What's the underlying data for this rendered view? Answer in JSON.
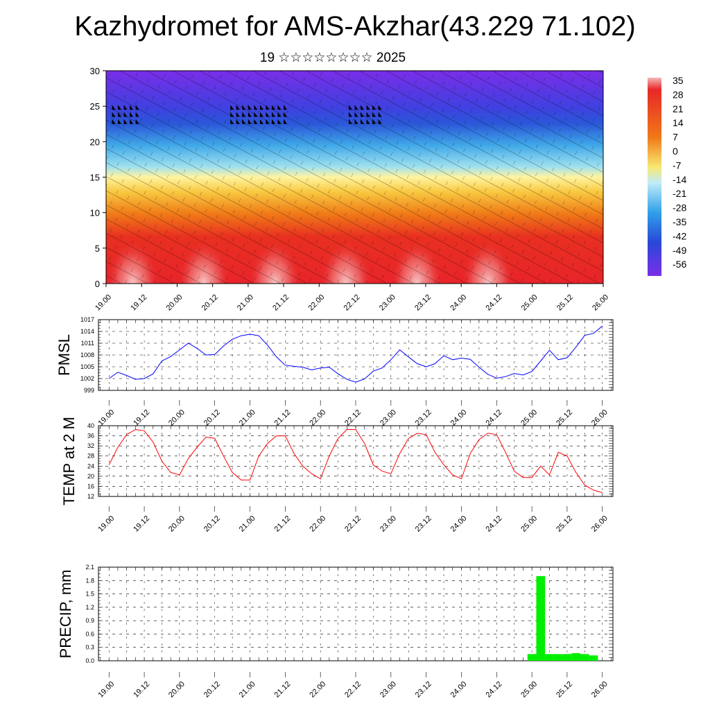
{
  "title": "Kazhydromet for AMS-Akzhar(43.229 71.102)",
  "subtitle": "19 ☆☆☆☆☆☆☆☆ 2025",
  "time_labels": [
    "19.00",
    "19.12",
    "20.00",
    "20.12",
    "21.00",
    "21.12",
    "22.00",
    "22.12",
    "23.00",
    "23.12",
    "24.00",
    "24.12",
    "25.00",
    "25.12",
    "26.00"
  ],
  "colorbar_labels": [
    "35",
    "28",
    "21",
    "14",
    "7",
    "0",
    "-7",
    "-14",
    "-21",
    "-28",
    "-35",
    "-42",
    "-49",
    "-56"
  ],
  "colors": {
    "pmsl_line": "#0000ff",
    "temp_line": "#ff0000",
    "precip_bar": "#00ee00",
    "grid": "#000000"
  },
  "chart_data": [
    {
      "type": "heatmap",
      "title": "Kazhydromet for AMS-Akzhar(43.229 71.102)",
      "subtitle": "19 ☆☆☆☆☆☆☆☆ 2025",
      "ylabel": "",
      "ylim": [
        0,
        30
      ],
      "y_ticks": [
        "0",
        "5",
        "10",
        "15",
        "20",
        "25",
        "30"
      ],
      "x_ticks": [
        "19.00",
        "19.12",
        "20.00",
        "20.12",
        "21.00",
        "21.12",
        "22.00",
        "22.12",
        "23.00",
        "23.12",
        "24.00",
        "24.12",
        "25.00",
        "25.12",
        "26.00"
      ],
      "colorbar": [
        "35",
        "28",
        "21",
        "14",
        "7",
        "0",
        "-7",
        "-14",
        "-21",
        "-28",
        "-35",
        "-42",
        "-49",
        "-56"
      ],
      "levels": [
        0,
        5,
        10,
        15,
        20,
        25,
        30
      ],
      "temperature_by_level": [
        33,
        25,
        15,
        -7,
        -24,
        -45,
        -56
      ]
    },
    {
      "type": "line",
      "ylabel": "PMSL",
      "ylim": [
        999,
        1017
      ],
      "y_ticks": [
        "1017",
        "1014",
        "1011",
        "1008",
        "1005",
        "1002",
        "999"
      ],
      "x_ticks": [
        "19.00",
        "19.12",
        "20.00",
        "20.12",
        "21.00",
        "21.12",
        "22.00",
        "22.12",
        "23.00",
        "23.12",
        "24.00",
        "24.12",
        "25.00",
        "25.12",
        "26.00"
      ],
      "x": [
        0,
        3,
        6,
        9,
        12,
        15,
        18,
        21,
        24,
        27,
        30,
        33,
        36,
        39,
        42,
        45,
        48,
        51,
        54,
        57,
        60,
        63,
        66,
        69,
        72,
        75,
        78,
        81,
        84,
        87,
        90,
        93,
        96,
        99,
        102,
        105,
        108,
        111,
        114,
        117,
        120,
        123,
        126,
        129,
        132,
        135,
        138,
        141,
        144,
        147,
        150,
        153,
        156,
        159,
        162,
        165,
        168
      ],
      "values": [
        1002,
        1003.6,
        1002.8,
        1001.8,
        1002,
        1003.2,
        1006.5,
        1007.6,
        1009.3,
        1011,
        1009.7,
        1008,
        1008.1,
        1010.3,
        1012,
        1012.9,
        1013.3,
        1012.9,
        1010.5,
        1007.5,
        1005.4,
        1005.1,
        1004.9,
        1004.2,
        1004.7,
        1004.9,
        1003.2,
        1001.8,
        1001.1,
        1001.9,
        1003.9,
        1004.7,
        1006.8,
        1009.3,
        1007.5,
        1005.8,
        1005,
        1005.8,
        1007.8,
        1006.8,
        1007.2,
        1006.9,
        1004.9,
        1003.1,
        1002.1,
        1002.5,
        1003.3,
        1002.9,
        1003.8,
        1006.5,
        1009.2,
        1006.8,
        1007.3,
        1010,
        1013,
        1013.5,
        1015.4
      ]
    },
    {
      "type": "line",
      "ylabel": "TEMP at 2 M",
      "ylim": [
        12,
        40
      ],
      "y_ticks": [
        "40",
        "36",
        "32",
        "28",
        "24",
        "20",
        "16",
        "12"
      ],
      "x_ticks": [
        "19.00",
        "19.12",
        "20.00",
        "20.12",
        "21.00",
        "21.12",
        "22.00",
        "22.12",
        "23.00",
        "23.12",
        "24.00",
        "24.12",
        "25.00",
        "25.12",
        "26.00"
      ],
      "x": [
        0,
        3,
        6,
        9,
        12,
        15,
        18,
        21,
        24,
        27,
        30,
        33,
        36,
        39,
        42,
        45,
        48,
        51,
        54,
        57,
        60,
        63,
        66,
        69,
        72,
        75,
        78,
        81,
        84,
        87,
        90,
        93,
        96,
        99,
        102,
        105,
        108,
        111,
        114,
        117,
        120,
        123,
        126,
        129,
        132,
        135,
        138,
        141,
        144,
        147,
        150,
        153,
        156,
        159,
        162,
        165,
        168
      ],
      "values": [
        24.5,
        31.5,
        36.5,
        38.5,
        38,
        33.5,
        26,
        21.5,
        20.5,
        27,
        31.5,
        35.5,
        35,
        28,
        21.5,
        18.5,
        18.5,
        28,
        33,
        36,
        36,
        29,
        24,
        21,
        19,
        28,
        35,
        38.5,
        38.5,
        33,
        24.5,
        22,
        21,
        29,
        35,
        37,
        36.5,
        29.5,
        24.5,
        20.5,
        19,
        29,
        34.5,
        37,
        36.5,
        29.5,
        22,
        19.5,
        19.5,
        24,
        20.5,
        29.5,
        28,
        21.5,
        16.5,
        14.5,
        13.5
      ]
    },
    {
      "type": "bar",
      "ylabel": "PRECIP, mm",
      "ylim": [
        0,
        2.1
      ],
      "y_ticks": [
        "2.1",
        "1.8",
        "1.5",
        "1.2",
        "0.9",
        "0.6",
        "0.3",
        "0.0"
      ],
      "x_ticks": [
        "19.00",
        "19.12",
        "20.00",
        "20.12",
        "21.00",
        "21.12",
        "22.00",
        "22.12",
        "23.00",
        "23.12",
        "24.00",
        "24.12",
        "25.00",
        "25.12",
        "26.00"
      ],
      "x": [
        144,
        147,
        150,
        153,
        156,
        159,
        162,
        165
      ],
      "values": [
        0.15,
        1.9,
        0.15,
        0.15,
        0.15,
        0.17,
        0.15,
        0.12
      ]
    }
  ]
}
